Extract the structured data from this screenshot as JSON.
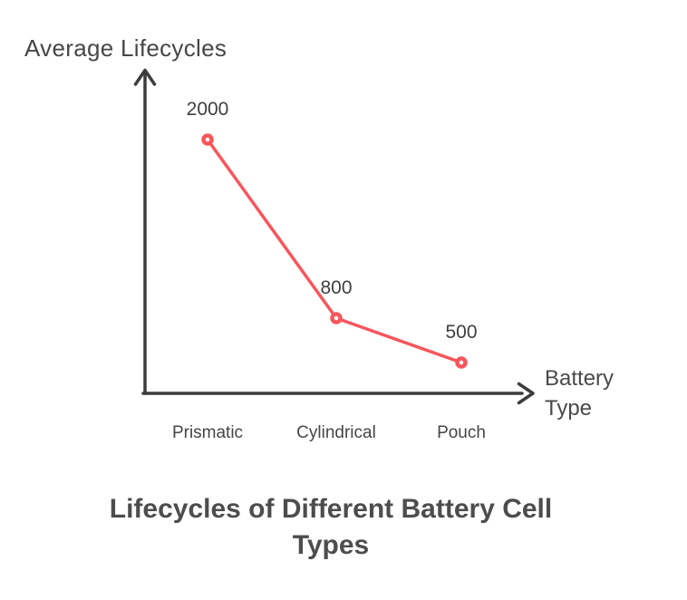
{
  "chart_data": {
    "type": "line",
    "title": "Lifecycles of Different Battery Cell Types",
    "xlabel": "Battery Type",
    "ylabel": "Average Lifecycles",
    "categories": [
      "Prismatic",
      "Cylindrical",
      "Pouch"
    ],
    "series": [
      {
        "name": "Average Lifecycles",
        "values": [
          2000,
          800,
          500
        ]
      }
    ],
    "data_labels": [
      "2000",
      "800",
      "500"
    ],
    "line_color": "#f7565c",
    "marker": "open-circle",
    "marker_fill": "#ffffff",
    "axis_color": "#3d3d3d",
    "text_color": "#454545",
    "grid": false,
    "legend_position": "none",
    "ylim": [
      0,
      2300
    ]
  }
}
